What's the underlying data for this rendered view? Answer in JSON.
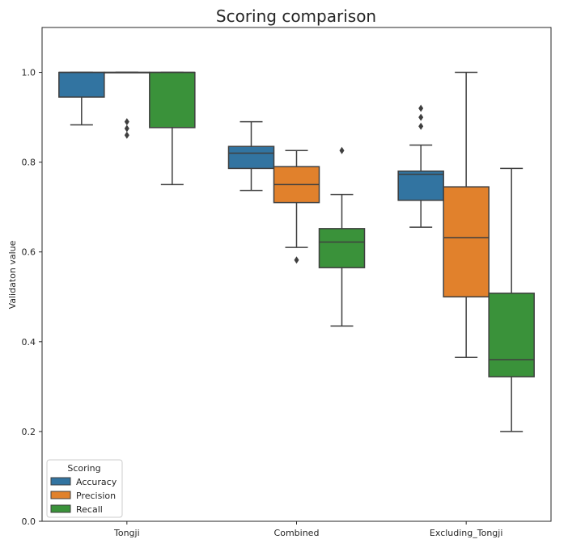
{
  "chart_data": {
    "type": "box",
    "title": "Scoring comparison",
    "xlabel": "",
    "ylabel": "Validaton value",
    "ylim": [
      0.0,
      1.1
    ],
    "yticks": [
      0.0,
      0.2,
      0.4,
      0.6,
      0.8,
      1.0
    ],
    "ytick_labels": [
      "0.0",
      "0.2",
      "0.4",
      "0.6",
      "0.8",
      "1.0"
    ],
    "categories": [
      "Tongji",
      "Combined",
      "Excluding_Tongji"
    ],
    "grid": false,
    "legend": {
      "title": "Scoring",
      "position": "lower-left"
    },
    "series": [
      {
        "name": "Accuracy",
        "color": "#3274a1",
        "boxes": [
          {
            "whisker_low": 0.883,
            "q1": 0.945,
            "median": 1.0,
            "q3": 1.0,
            "whisker_high": 1.0,
            "outliers": []
          },
          {
            "whisker_low": 0.737,
            "q1": 0.786,
            "median": 0.82,
            "q3": 0.835,
            "whisker_high": 0.89,
            "outliers": []
          },
          {
            "whisker_low": 0.655,
            "q1": 0.715,
            "median": 0.773,
            "q3": 0.78,
            "whisker_high": 0.838,
            "outliers": [
              0.88,
              0.9,
              0.92
            ]
          }
        ]
      },
      {
        "name": "Precision",
        "color": "#e1812c",
        "boxes": [
          {
            "whisker_low": 1.0,
            "q1": 1.0,
            "median": 1.0,
            "q3": 1.0,
            "whisker_high": 1.0,
            "outliers": [
              0.86,
              0.875,
              0.89
            ]
          },
          {
            "whisker_low": 0.61,
            "q1": 0.71,
            "median": 0.75,
            "q3": 0.79,
            "whisker_high": 0.826,
            "outliers": [
              0.582
            ]
          },
          {
            "whisker_low": 0.365,
            "q1": 0.5,
            "median": 0.632,
            "q3": 0.745,
            "whisker_high": 1.0,
            "outliers": []
          }
        ]
      },
      {
        "name": "Recall",
        "color": "#3a923a",
        "boxes": [
          {
            "whisker_low": 0.75,
            "q1": 0.877,
            "median": 1.0,
            "q3": 1.0,
            "whisker_high": 1.0,
            "outliers": []
          },
          {
            "whisker_low": 0.435,
            "q1": 0.565,
            "median": 0.622,
            "q3": 0.652,
            "whisker_high": 0.728,
            "outliers": [
              0.826
            ]
          },
          {
            "whisker_low": 0.2,
            "q1": 0.322,
            "median": 0.36,
            "q3": 0.508,
            "whisker_high": 0.786,
            "outliers": []
          }
        ]
      }
    ]
  }
}
